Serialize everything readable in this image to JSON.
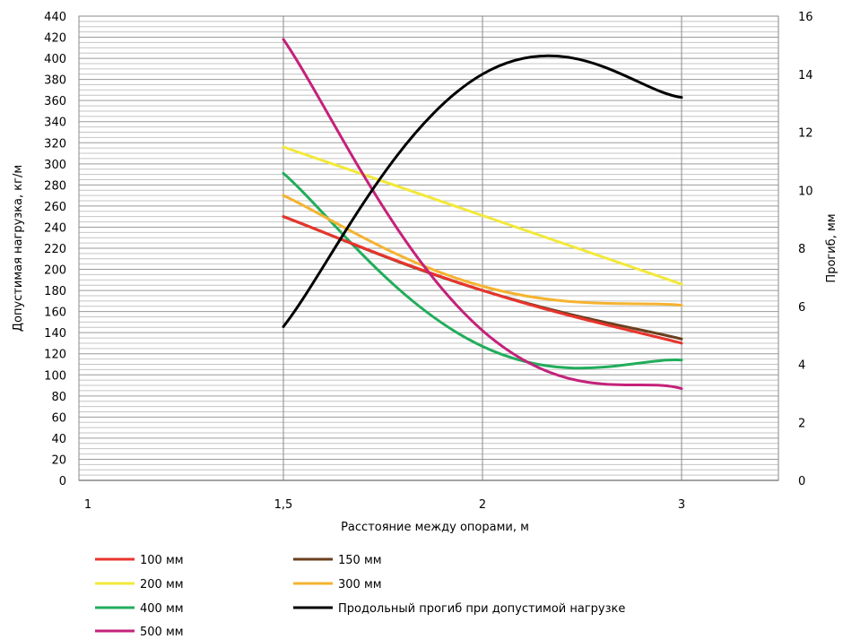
{
  "chart_data": {
    "type": "line",
    "x_categories": [
      "1",
      "1,5",
      "2",
      "3"
    ],
    "xlabel": "Расстояние между опорами, м",
    "ylabel": "Допустимая нагрузка, кг/м",
    "y2label": "Прогиб, мм",
    "ylim": [
      0,
      440
    ],
    "ystep": 20,
    "ylim2": [
      0,
      16
    ],
    "ystep2": 2,
    "grid": true,
    "legend_position": "bottom",
    "series": [
      {
        "name": "100 мм",
        "axis": "left",
        "color": "#e8342c",
        "x": [
          "1,5",
          "2",
          "3"
        ],
        "values": [
          250,
          180,
          130
        ]
      },
      {
        "name": "150 мм",
        "axis": "left",
        "color": "#6b3f1e",
        "x": [
          "1,5",
          "2",
          "3"
        ],
        "values": [
          250,
          180,
          134
        ]
      },
      {
        "name": "200 мм",
        "axis": "left",
        "color": "#f2e93a",
        "x": [
          "1,5",
          "2",
          "3"
        ],
        "values": [
          316,
          251,
          186
        ]
      },
      {
        "name": "300 мм",
        "axis": "left",
        "color": "#f5b330",
        "x": [
          "1,5",
          "2",
          "3"
        ],
        "values": [
          270,
          184,
          166
        ]
      },
      {
        "name": "400 мм",
        "axis": "left",
        "color": "#22ad5c",
        "x": [
          "1,5",
          "2",
          "3"
        ],
        "values": [
          291,
          127,
          114
        ]
      },
      {
        "name": "500 мм",
        "axis": "left",
        "color": "#c4227a",
        "x": [
          "1,5",
          "2",
          "3"
        ],
        "values": [
          418,
          142,
          87
        ]
      },
      {
        "name": "Продольный прогиб при допустимой нагрузке",
        "axis": "right",
        "color": "#000000",
        "x": [
          "1,5",
          "2",
          "3"
        ],
        "values": [
          5.3,
          14.0,
          13.2
        ]
      }
    ]
  }
}
